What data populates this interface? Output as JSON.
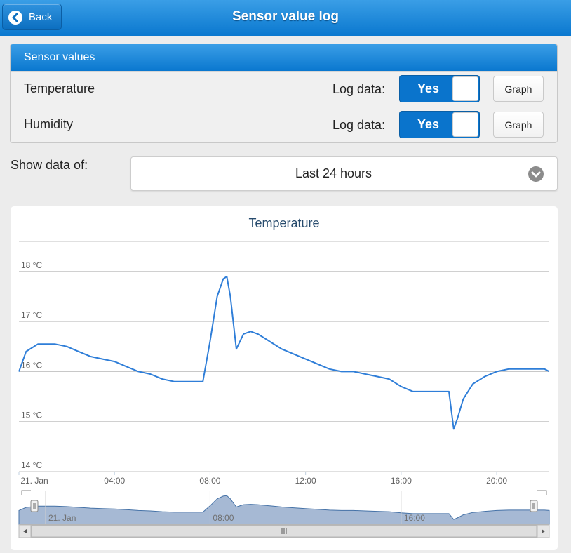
{
  "header": {
    "back_label": "Back",
    "title": "Sensor value log"
  },
  "panel": {
    "title": "Sensor values",
    "rows": [
      {
        "name": "Temperature",
        "log_label": "Log data:",
        "toggle_label": "Yes",
        "graph_label": "Graph"
      },
      {
        "name": "Humidity",
        "log_label": "Log data:",
        "toggle_label": "Yes",
        "graph_label": "Graph"
      }
    ]
  },
  "filter": {
    "label": "Show data of:",
    "value": "Last 24 hours"
  },
  "chart_data": {
    "type": "line",
    "title": "Temperature",
    "y_unit": "°C",
    "y_ticks": [
      "18 °C",
      "17 °C",
      "16 °C",
      "15 °C",
      "14 °C"
    ],
    "y_tick_values": [
      18,
      17,
      16,
      15,
      14
    ],
    "ylim": [
      14,
      18.6
    ],
    "x_ticks": [
      "21. Jan",
      "04:00",
      "08:00",
      "12:00",
      "16:00",
      "20:00"
    ],
    "x_tick_hours": [
      0,
      4,
      8,
      12,
      16,
      20
    ],
    "xlim": [
      0,
      22.2
    ],
    "navigator_ticks": [
      "21. Jan",
      "08:00",
      "16:00"
    ],
    "navigator_tick_hours": [
      0,
      8,
      16
    ],
    "grid": true,
    "legend": "none",
    "series": [
      {
        "color": "#2f7ed8",
        "x": [
          0,
          0.3,
          0.8,
          1.5,
          2.0,
          2.5,
          3.0,
          3.5,
          4.0,
          4.5,
          5.0,
          5.5,
          6.0,
          6.5,
          7.0,
          7.7,
          8.0,
          8.3,
          8.55,
          8.7,
          8.85,
          9.1,
          9.4,
          9.7,
          10.0,
          10.5,
          11.0,
          11.5,
          12.0,
          12.5,
          13.0,
          13.5,
          14.0,
          14.5,
          15.0,
          15.5,
          16.0,
          16.5,
          17.0,
          17.5,
          18.0,
          18.2,
          18.35,
          18.6,
          19.0,
          19.5,
          20.0,
          20.5,
          21.0,
          21.5,
          22.0,
          22.2
        ],
        "y": [
          16.0,
          16.4,
          16.55,
          16.55,
          16.5,
          16.4,
          16.3,
          16.25,
          16.2,
          16.1,
          16.0,
          15.95,
          15.85,
          15.8,
          15.8,
          15.8,
          16.6,
          17.5,
          17.85,
          17.9,
          17.5,
          16.45,
          16.75,
          16.8,
          16.75,
          16.6,
          16.45,
          16.35,
          16.25,
          16.15,
          16.05,
          16.0,
          16.0,
          15.95,
          15.9,
          15.85,
          15.7,
          15.6,
          15.6,
          15.6,
          15.6,
          14.85,
          15.05,
          15.45,
          15.75,
          15.9,
          16.0,
          16.05,
          16.05,
          16.05,
          16.05,
          16.0
        ]
      }
    ]
  }
}
